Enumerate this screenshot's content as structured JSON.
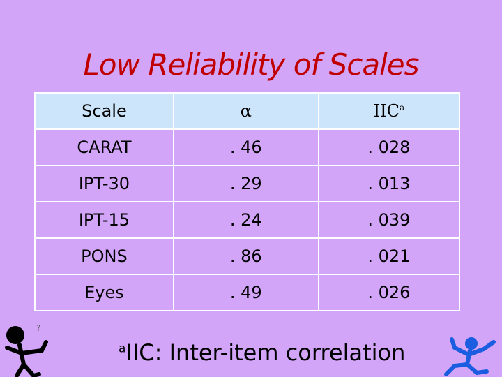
{
  "title": "Low Reliability of Scales",
  "table": {
    "header": [
      "Scale",
      "α",
      "IIC"
    ],
    "header_note": "a",
    "rows": [
      [
        "CARAT",
        ". 46",
        ". 028"
      ],
      [
        "IPT-30",
        ". 29",
        ". 013"
      ],
      [
        "IPT-15",
        ". 24",
        ". 039"
      ],
      [
        "PONS",
        ". 86",
        ". 021"
      ],
      [
        "Eyes",
        ". 49",
        ". 026"
      ]
    ]
  },
  "footnote": {
    "marker": "a",
    "text": "IIC: Inter-item correlation"
  }
}
